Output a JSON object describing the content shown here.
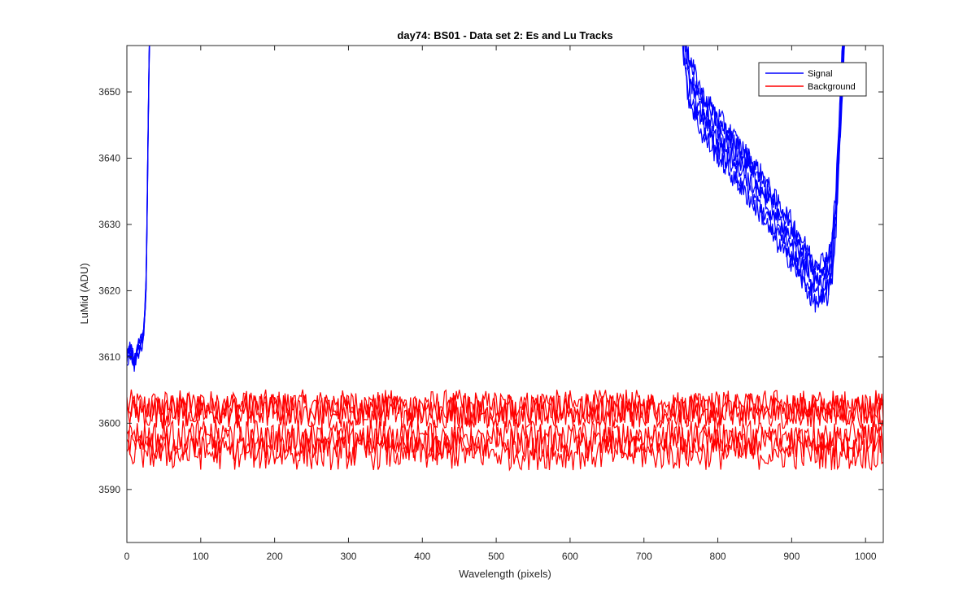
{
  "chart_data": {
    "type": "line",
    "title": "day74: BS01 - Data set 2: Es and Lu Tracks",
    "xlabel": "Wavelength (pixels)",
    "ylabel": "LuMid (ADU)",
    "xlim": [
      0,
      1024
    ],
    "ylim": [
      3582,
      3657
    ],
    "xticks": [
      0,
      100,
      200,
      300,
      400,
      500,
      600,
      700,
      800,
      900,
      1000
    ],
    "yticks": [
      3590,
      3600,
      3610,
      3620,
      3630,
      3640,
      3650
    ],
    "grid": false,
    "legend_position": "top-right",
    "series": [
      {
        "name": "Signal",
        "color": "#0000ff",
        "tracks": 6,
        "segments": [
          {
            "x": [
              0,
              5,
              10,
              15,
              20,
              22,
              24,
              26,
              27,
              28,
              29,
              30,
              31
            ],
            "y": [
              3610,
              3611,
              3609,
              3611,
              3612,
              3613,
              3616,
              3621,
              3628,
              3637,
              3646,
              3654,
              3660
            ]
          },
          {
            "x": [
              752,
              760,
              780,
              800,
              820,
              840,
              860,
              880,
              900,
              910,
              920,
              930,
              940,
              950,
              955,
              960,
              963,
              966,
              968,
              970,
              972
            ],
            "y": [
              3660,
              3652,
              3646,
              3643,
              3640,
              3637,
              3634,
              3630,
              3627,
              3625,
              3623,
              3621,
              3621,
              3622,
              3625,
              3632,
              3640,
              3646,
              3652,
              3656,
              3660
            ]
          }
        ]
      },
      {
        "name": "Background",
        "color": "#ff0000",
        "tracks": 6,
        "levels": [
          3602.5,
          3602,
          3601.8,
          3598,
          3597,
          3595.5
        ],
        "x": [
          0,
          1024
        ]
      }
    ]
  }
}
